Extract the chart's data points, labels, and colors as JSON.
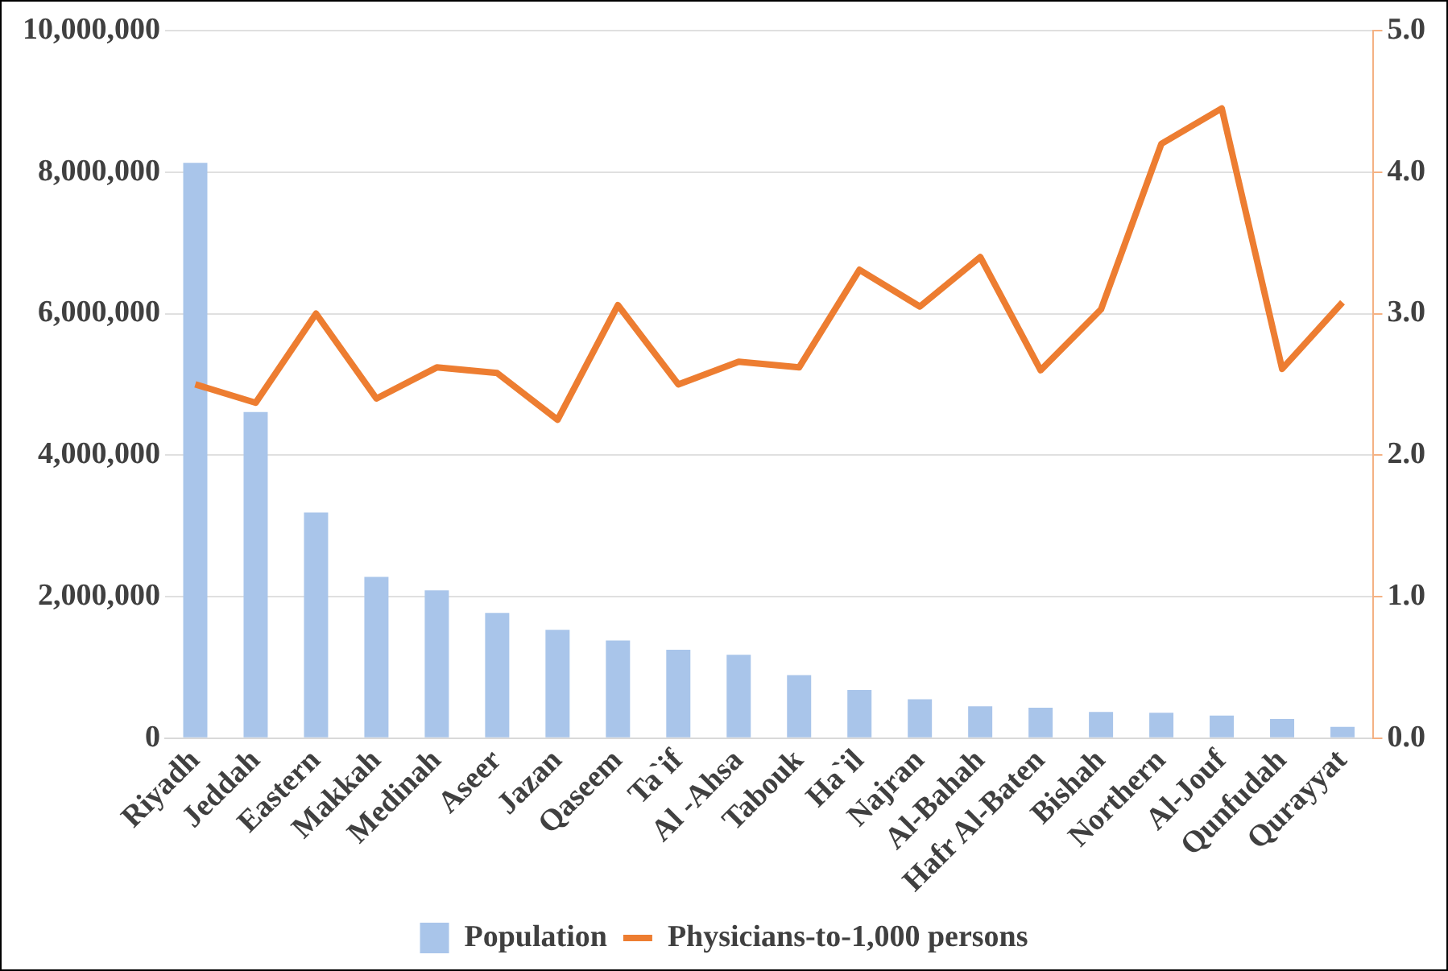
{
  "chart_data": {
    "type": "bar",
    "categories": [
      "Riyadh",
      "Jeddah",
      "Eastern",
      "Makkah",
      "Medinah",
      "Aseer",
      "Jazan",
      "Qaseem",
      "Ta`if",
      "Al -Ahsa",
      "Tabouk",
      "Ha`il",
      "Najran",
      "Al-Bahah",
      "Hafr Al-Baten",
      "Bishah",
      "Northern",
      "Al-Jouf",
      "Qunfudah",
      "Qurayyat"
    ],
    "series": [
      {
        "name": "Population",
        "color": "#a9c5ea",
        "values": [
          8130000,
          4610000,
          3190000,
          2280000,
          2090000,
          1770000,
          1530000,
          1380000,
          1250000,
          1180000,
          890000,
          680000,
          550000,
          450000,
          430000,
          370000,
          360000,
          320000,
          270000,
          160000
        ]
      },
      {
        "name": "Physicians-to-1,000 persons",
        "type": "line",
        "axis": "y2",
        "color": "#ed7d31",
        "values": [
          2.5,
          2.37,
          3.0,
          2.4,
          2.62,
          2.58,
          2.25,
          3.06,
          2.5,
          2.66,
          2.62,
          3.31,
          3.05,
          3.4,
          2.6,
          3.03,
          4.2,
          4.45,
          2.61,
          3.08
        ]
      }
    ],
    "ylim": [
      0,
      10000000
    ],
    "yticks": [
      {
        "value": 0,
        "label": "0"
      },
      {
        "value": 2000000,
        "label": "2,000,000"
      },
      {
        "value": 4000000,
        "label": "4,000,000"
      },
      {
        "value": 6000000,
        "label": "6,000,000"
      },
      {
        "value": 8000000,
        "label": "8,000,000"
      },
      {
        "value": 10000000,
        "label": "10,000,000"
      }
    ],
    "y2lim": [
      0,
      5
    ],
    "y2ticks": [
      {
        "value": 0,
        "label": "0.0"
      },
      {
        "value": 1,
        "label": "1.0"
      },
      {
        "value": 2,
        "label": "2.0"
      },
      {
        "value": 3,
        "label": "3.0"
      },
      {
        "value": 4,
        "label": "4.0"
      },
      {
        "value": 5,
        "label": "5.0"
      }
    ],
    "grid": "y",
    "legend": "bottom",
    "marker": "none",
    "line_style": "solid"
  }
}
